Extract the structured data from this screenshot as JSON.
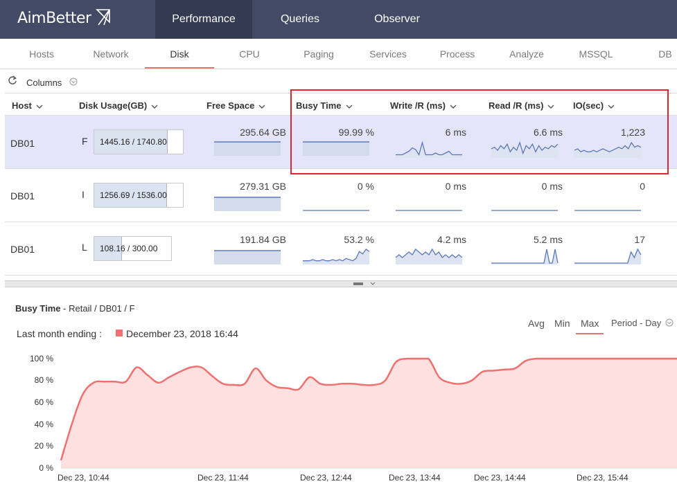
{
  "app": {
    "logo_text": "AimBetter"
  },
  "top_nav": [
    {
      "label": "Performance",
      "active": true
    },
    {
      "label": "Queries",
      "active": false
    },
    {
      "label": "Observer",
      "active": false
    }
  ],
  "sub_tabs": [
    "Hosts",
    "Network",
    "Disk",
    "CPU",
    "Paging",
    "Services",
    "Process",
    "Analyze",
    "MSSQL",
    "DB"
  ],
  "active_sub_tab": "Disk",
  "toolbar": {
    "columns_label": "Columns"
  },
  "table": {
    "headers": {
      "host": "Host",
      "usage": "Disk Usage(GB)",
      "free": "Free Space",
      "busy": "Busy Time",
      "write": "Write /R (ms)",
      "read": "Read /R (ms)",
      "io": "IO(sec)"
    },
    "rows": [
      {
        "host": "DB01",
        "drive": "F",
        "usage": "1445.16 / 1740.80",
        "usage_fraction": 0.83,
        "free": "295.64 GB",
        "busy": "99.99 %",
        "write": "6 ms",
        "read": "6.6 ms",
        "io": "1,223",
        "free_spark": [
          5,
          5,
          5,
          5,
          5,
          5,
          5,
          5,
          5,
          5
        ],
        "busy_spark": [
          5,
          5,
          5,
          5,
          5,
          5,
          5,
          5,
          5,
          5
        ],
        "write_spark": [
          1,
          1,
          1,
          2,
          3,
          5,
          4,
          1,
          8,
          1,
          1,
          1,
          2,
          1,
          1,
          2,
          3,
          1,
          1,
          1,
          1
        ],
        "read_spark": [
          5,
          6,
          4,
          7,
          5,
          8,
          3,
          6,
          4,
          9,
          2,
          7,
          5,
          8,
          3,
          7,
          4,
          6,
          5,
          7,
          6,
          8
        ],
        "io_spark": [
          4,
          5,
          3,
          4,
          3,
          3,
          4,
          3,
          4,
          5,
          4,
          3,
          4,
          5,
          6,
          5,
          7,
          5,
          9,
          6,
          7,
          6
        ]
      },
      {
        "host": "DB01",
        "drive": "I",
        "usage": "1256.69 / 1536.00",
        "usage_fraction": 0.82,
        "free": "279.31 GB",
        "busy": "0 %",
        "write": "0 ms",
        "read": "0 ms",
        "io": "0",
        "free_spark": [
          5,
          5,
          5,
          5,
          5,
          5,
          5,
          5,
          5,
          5
        ],
        "busy_spark": [
          0,
          0,
          0,
          0,
          0,
          0,
          0,
          0,
          0,
          0
        ],
        "write_spark": [
          0,
          0,
          0,
          0,
          0,
          0,
          0,
          0,
          0,
          0
        ],
        "read_spark": [
          0,
          0,
          0,
          0,
          0,
          0,
          0,
          0,
          0,
          0
        ],
        "io_spark": [
          0,
          0,
          0,
          0,
          0,
          0,
          0,
          0,
          0,
          0
        ]
      },
      {
        "host": "DB01",
        "drive": "L",
        "usage": "108.16 / 300.00",
        "usage_fraction": 0.36,
        "free": "191.84 GB",
        "busy": "53.2 %",
        "write": "4.2 ms",
        "read": "5.2 ms",
        "io": "17",
        "free_spark": [
          5,
          5,
          5,
          5,
          5,
          5,
          5,
          5,
          5,
          5
        ],
        "busy_spark": [
          1,
          1,
          1,
          1.5,
          1,
          1,
          1.5,
          1,
          1,
          1.5,
          1,
          1.5,
          1,
          2,
          1.5,
          1,
          2,
          5,
          4,
          6,
          5
        ],
        "write_spark": [
          2,
          3,
          2,
          3,
          4,
          3,
          5,
          4,
          3,
          4,
          3,
          5,
          3,
          4,
          2,
          3,
          2,
          3,
          2,
          3,
          2
        ],
        "read_spark": [
          0,
          0,
          0,
          0,
          0,
          0,
          0,
          0,
          0,
          0,
          0,
          0,
          0,
          0,
          0,
          0,
          0,
          0,
          0,
          0,
          5,
          0,
          0,
          5,
          0
        ],
        "io_spark": [
          0,
          0,
          0,
          0,
          0,
          0,
          0,
          0,
          0,
          0,
          0,
          0,
          0,
          0,
          0,
          0,
          0,
          4,
          2,
          5,
          3
        ]
      }
    ]
  },
  "detail": {
    "metric": "Busy Time",
    "sep": "-",
    "path": [
      "Retail",
      "DB01",
      "F"
    ],
    "ending_label": "Last month ending :",
    "ending_date": "December 23, 2018 16:44",
    "aggregates": [
      "Avg",
      "Min",
      "Max"
    ],
    "active_aggregate": "Max",
    "period": "Period - Day",
    "series_color": "#f07070",
    "fill_color": "#fde0e0"
  },
  "chart_data": {
    "type": "area",
    "title": "Busy Time",
    "ylabel": "",
    "ylim": [
      0,
      100
    ],
    "y_ticks": [
      "100 %",
      "80 %",
      "60 %",
      "40 %",
      "20 %",
      "0 %"
    ],
    "x_ticks": [
      "Dec 23, 10:44",
      "Dec 23, 11:44",
      "Dec 23, 12:44",
      "Dec 23, 13:44",
      "Dec 23, 14:44",
      "Dec 23, 15:44"
    ],
    "x_minutes": [
      0,
      6,
      12,
      18,
      24,
      30,
      36,
      42,
      48,
      54,
      60,
      66,
      72,
      78,
      84,
      90,
      96,
      102,
      108,
      114,
      120,
      126,
      132,
      138,
      144,
      150,
      156,
      162,
      168,
      174,
      180,
      186,
      192,
      198,
      204,
      210,
      216,
      222,
      228,
      234,
      240,
      246,
      252,
      258,
      264,
      270,
      276,
      282,
      288,
      294,
      300,
      306,
      312,
      318,
      324,
      330,
      336,
      342
    ],
    "values": [
      7,
      40,
      67,
      78,
      79,
      79,
      79,
      92,
      85,
      78,
      83,
      88,
      92,
      92,
      84,
      77,
      76,
      77,
      91,
      80,
      74,
      73,
      72,
      83,
      77,
      76,
      77,
      77,
      76,
      76,
      80,
      97,
      100,
      100,
      100,
      83,
      78,
      77,
      80,
      88,
      89,
      90,
      91,
      98,
      100,
      100,
      100,
      100,
      100,
      100,
      100,
      100,
      100,
      100,
      100,
      100,
      100,
      100
    ]
  }
}
